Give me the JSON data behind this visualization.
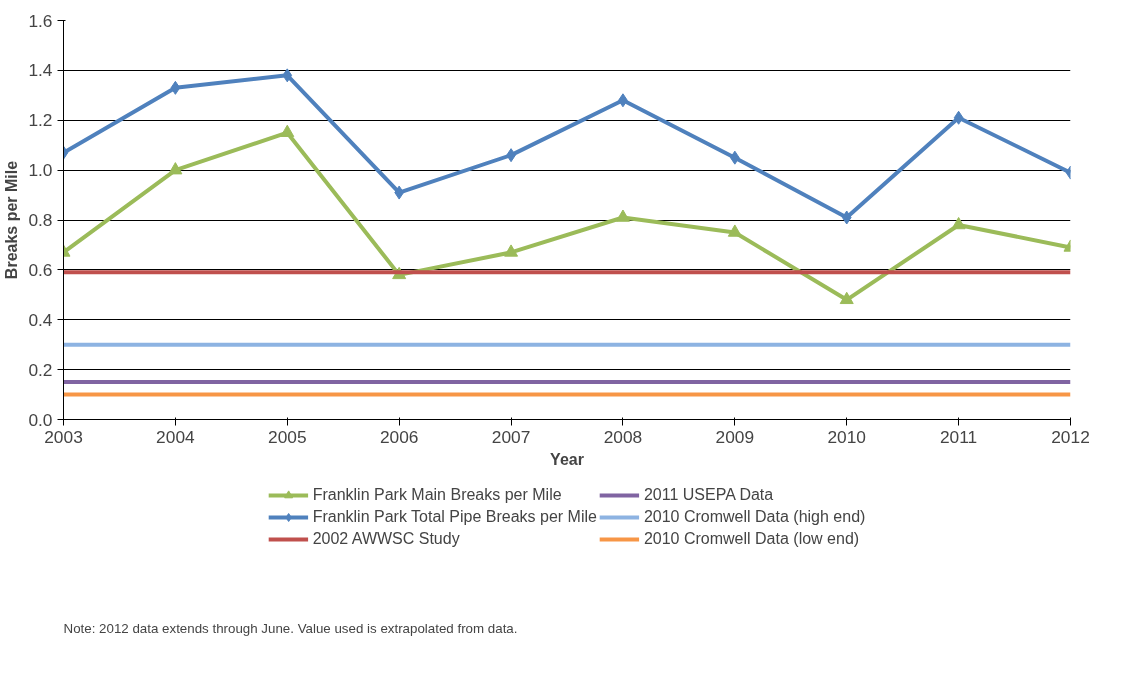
{
  "chart_data": {
    "type": "line",
    "xlabel": "Year",
    "ylabel": "Breaks per Mile",
    "categories": [
      "2003",
      "2004",
      "2005",
      "2006",
      "2007",
      "2008",
      "2009",
      "2010",
      "2011",
      "2012"
    ],
    "series": [
      {
        "name": "Franklin Park Main Breaks per Mile",
        "color": "#9bbb59",
        "marker": "triangle",
        "values": [
          0.67,
          1.0,
          1.15,
          0.58,
          0.67,
          0.81,
          0.75,
          0.48,
          0.78,
          0.69
        ]
      },
      {
        "name": "Franklin Park Total Pipe Breaks per Mile",
        "color": "#4f81bd",
        "marker": "diamond",
        "values": [
          1.07,
          1.33,
          1.38,
          0.91,
          1.06,
          1.28,
          1.05,
          0.81,
          1.21,
          0.99
        ]
      },
      {
        "name": "2002 AWWSC Study",
        "color": "#c0504d",
        "marker": "none",
        "values": [
          0.59,
          0.59,
          0.59,
          0.59,
          0.59,
          0.59,
          0.59,
          0.59,
          0.59,
          0.59
        ]
      },
      {
        "name": "2011 USEPA Data",
        "color": "#8064a2",
        "marker": "none",
        "values": [
          0.15,
          0.15,
          0.15,
          0.15,
          0.15,
          0.15,
          0.15,
          0.15,
          0.15,
          0.15
        ]
      },
      {
        "name": "2010 Cromwell Data (high end)",
        "color": "#8db3e2",
        "marker": "none",
        "values": [
          0.3,
          0.3,
          0.3,
          0.3,
          0.3,
          0.3,
          0.3,
          0.3,
          0.3,
          0.3
        ]
      },
      {
        "name": "2010 Cromwell Data (low end)",
        "color": "#f79646",
        "marker": "none",
        "values": [
          0.1,
          0.1,
          0.1,
          0.1,
          0.1,
          0.1,
          0.1,
          0.1,
          0.1,
          0.1
        ]
      }
    ],
    "ylim": [
      0,
      1.6
    ],
    "yticks": [
      {
        "value": 0,
        "label": "0.0"
      },
      0.2,
      0.4,
      0.6,
      0.8,
      {
        "value": 1,
        "label": "1.0"
      },
      1.2,
      1.4,
      1.6
    ],
    "grid": "y",
    "legend": "bottom",
    "line_style": "solid",
    "annotations": [
      "Note:  2012 data extends through June.  Value used is extrapolated from data."
    ]
  }
}
